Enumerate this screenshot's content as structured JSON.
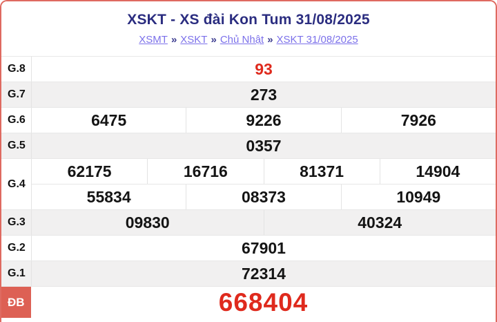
{
  "header": {
    "title": "XSKT - XS đài Kon Tum 31/08/2025",
    "breadcrumb": {
      "separator": "»",
      "items": [
        {
          "id": "xsmt",
          "label": "XSMT"
        },
        {
          "id": "xskt",
          "label": "XSKT"
        },
        {
          "id": "chu-nhat",
          "label": "Chủ Nhật"
        },
        {
          "id": "xskt-date",
          "label": "XSKT 31/08/2025"
        }
      ]
    }
  },
  "results": {
    "rows": [
      {
        "id": "g8",
        "label": "G.8",
        "red": true,
        "lines": [
          [
            "93"
          ]
        ]
      },
      {
        "id": "g7",
        "label": "G.7",
        "lines": [
          [
            "273"
          ]
        ]
      },
      {
        "id": "g6",
        "label": "G.6",
        "lines": [
          [
            "6475",
            "9226",
            "7926"
          ]
        ]
      },
      {
        "id": "g5",
        "label": "G.5",
        "lines": [
          [
            "0357"
          ]
        ]
      },
      {
        "id": "g4",
        "label": "G.4",
        "lines": [
          [
            "62175",
            "16716",
            "81371",
            "14904"
          ],
          [
            "55834",
            "08373",
            "10949"
          ]
        ]
      },
      {
        "id": "g3",
        "label": "G.3",
        "lines": [
          [
            "09830",
            "40324"
          ]
        ]
      },
      {
        "id": "g2",
        "label": "G.2",
        "lines": [
          [
            "67901"
          ]
        ]
      },
      {
        "id": "g1",
        "label": "G.1",
        "lines": [
          [
            "72314"
          ]
        ]
      },
      {
        "id": "db",
        "label": "ĐB",
        "red": true,
        "special": true,
        "lines": [
          [
            "668404"
          ]
        ]
      }
    ]
  },
  "colors": {
    "card_border": "#df6a60",
    "title_navy": "#2b2d80",
    "breadcrumb_link": "#7b70ea",
    "highlight_red": "#df2a1d",
    "special_label_bg": "#dd6054",
    "shaded_row_bg": "#f1f0f0"
  }
}
